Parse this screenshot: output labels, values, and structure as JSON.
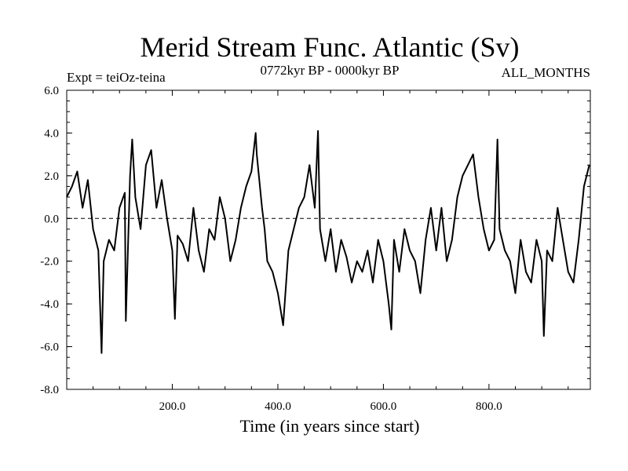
{
  "chart_data": {
    "type": "line",
    "title": "Merid Stream Func. Atlantic (Sv)",
    "subtitle_left": "Expt = teiOz-teina",
    "subtitle_center": "0772kyr BP - 0000kyr BP",
    "subtitle_right": "ALL_MONTHS",
    "xlabel": "Time (in years since start)",
    "ylabel": "",
    "xlim": [
      0,
      992
    ],
    "ylim": [
      -8,
      6
    ],
    "xticks": [
      200,
      400,
      600,
      800
    ],
    "xtick_labels": [
      "200.0",
      "400.0",
      "600.0",
      "800.0"
    ],
    "yticks": [
      6,
      4,
      2,
      0,
      -2,
      -4,
      -6,
      -8
    ],
    "ytick_labels": [
      "6.0",
      "4.0",
      "2.0",
      "0.0",
      "-2.0",
      "-4.0",
      "-6.0",
      "-8.0"
    ],
    "reference_line": 0,
    "series": [
      {
        "name": "Merid Stream Func. Atlantic",
        "x": [
          0,
          10,
          20,
          30,
          40,
          50,
          60,
          66,
          70,
          80,
          90,
          100,
          110,
          112,
          120,
          124,
          130,
          140,
          150,
          160,
          170,
          180,
          190,
          200,
          205,
          210,
          220,
          230,
          240,
          250,
          260,
          270,
          280,
          290,
          300,
          310,
          320,
          330,
          340,
          350,
          358,
          360,
          370,
          375,
          380,
          390,
          400,
          410,
          420,
          430,
          440,
          450,
          460,
          470,
          476,
          480,
          490,
          500,
          510,
          520,
          530,
          540,
          550,
          560,
          570,
          580,
          590,
          600,
          610,
          615,
          620,
          630,
          640,
          650,
          660,
          670,
          680,
          690,
          700,
          710,
          720,
          730,
          740,
          750,
          760,
          770,
          780,
          790,
          800,
          810,
          816,
          820,
          830,
          840,
          850,
          860,
          870,
          880,
          890,
          900,
          904,
          910,
          920,
          930,
          940,
          950,
          960,
          970,
          980,
          990
        ],
        "values": [
          1.0,
          1.5,
          2.2,
          0.5,
          1.8,
          -0.5,
          -1.5,
          -6.3,
          -2.0,
          -1.0,
          -1.5,
          0.5,
          1.2,
          -4.8,
          2.0,
          3.7,
          1.0,
          -0.5,
          2.5,
          3.2,
          0.5,
          1.8,
          0.0,
          -1.5,
          -4.7,
          -0.8,
          -1.2,
          -2.0,
          0.5,
          -1.5,
          -2.5,
          -0.5,
          -1.0,
          1.0,
          0.0,
          -2.0,
          -1.0,
          0.5,
          1.5,
          2.2,
          4.0,
          3.0,
          0.5,
          -0.5,
          -2.0,
          -2.5,
          -3.5,
          -5.0,
          -1.5,
          -0.5,
          0.5,
          1.0,
          2.5,
          0.5,
          4.1,
          -0.5,
          -2.0,
          -0.5,
          -2.5,
          -1.0,
          -1.8,
          -3.0,
          -2.0,
          -2.5,
          -1.5,
          -3.0,
          -1.0,
          -2.0,
          -4.0,
          -5.2,
          -1.0,
          -2.5,
          -0.5,
          -1.5,
          -2.0,
          -3.5,
          -1.0,
          0.5,
          -1.5,
          0.5,
          -2.0,
          -1.0,
          1.0,
          2.0,
          2.5,
          3.0,
          1.0,
          -0.5,
          -1.5,
          -1.0,
          3.7,
          -0.5,
          -1.5,
          -2.0,
          -3.5,
          -1.0,
          -2.5,
          -3.0,
          -1.0,
          -2.0,
          -5.5,
          -1.5,
          -2.0,
          0.5,
          -1.0,
          -2.5,
          -3.0,
          -1.0,
          1.5,
          2.5
        ]
      }
    ]
  }
}
